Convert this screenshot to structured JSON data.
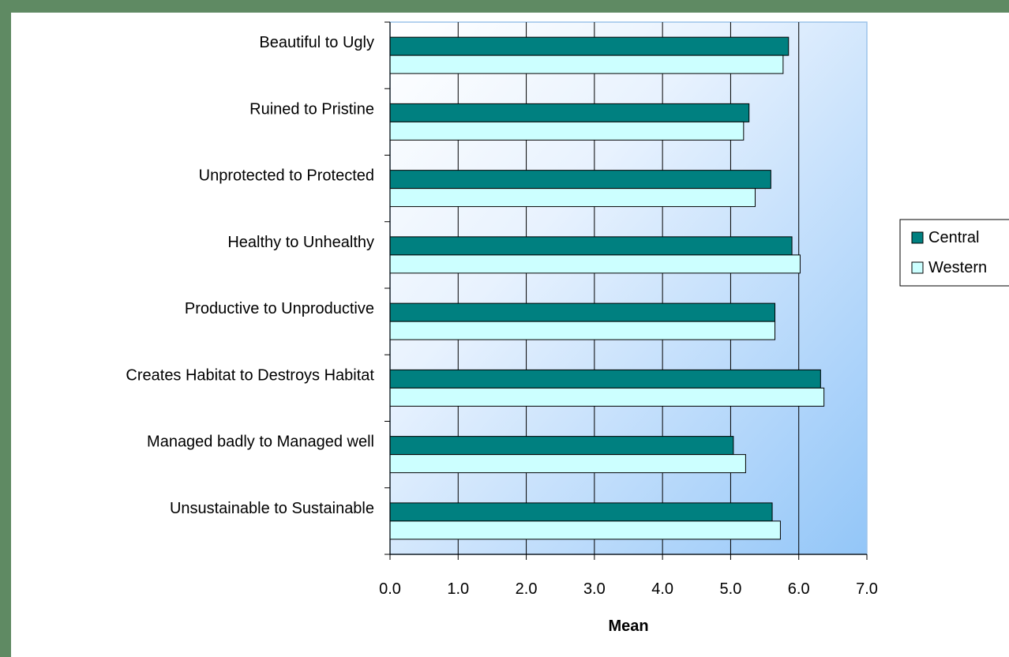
{
  "chart_data": {
    "type": "bar",
    "orientation": "horizontal",
    "categories": [
      "Beautiful to Ugly",
      "Ruined to Pristine",
      "Unprotected to Protected",
      "Healthy to Unhealthy",
      "Productive to Unproductive",
      "Creates Habitat to Destroys Habitat",
      "Managed badly to Managed well",
      "Unsustainable to Sustainable"
    ],
    "series": [
      {
        "name": "Central",
        "color": "#008080",
        "values": [
          5.85,
          5.27,
          5.59,
          5.9,
          5.65,
          6.32,
          5.04,
          5.61
        ]
      },
      {
        "name": "Western",
        "color": "#ccffff",
        "values": [
          5.77,
          5.19,
          5.36,
          6.02,
          5.65,
          6.37,
          5.22,
          5.73
        ]
      }
    ],
    "xlabel": "Mean",
    "xlim": [
      0,
      7
    ],
    "xticks": [
      "0.0",
      "1.0",
      "2.0",
      "3.0",
      "4.0",
      "5.0",
      "6.0",
      "7.0"
    ],
    "grid": "vertical major gridlines",
    "legend": "right"
  }
}
